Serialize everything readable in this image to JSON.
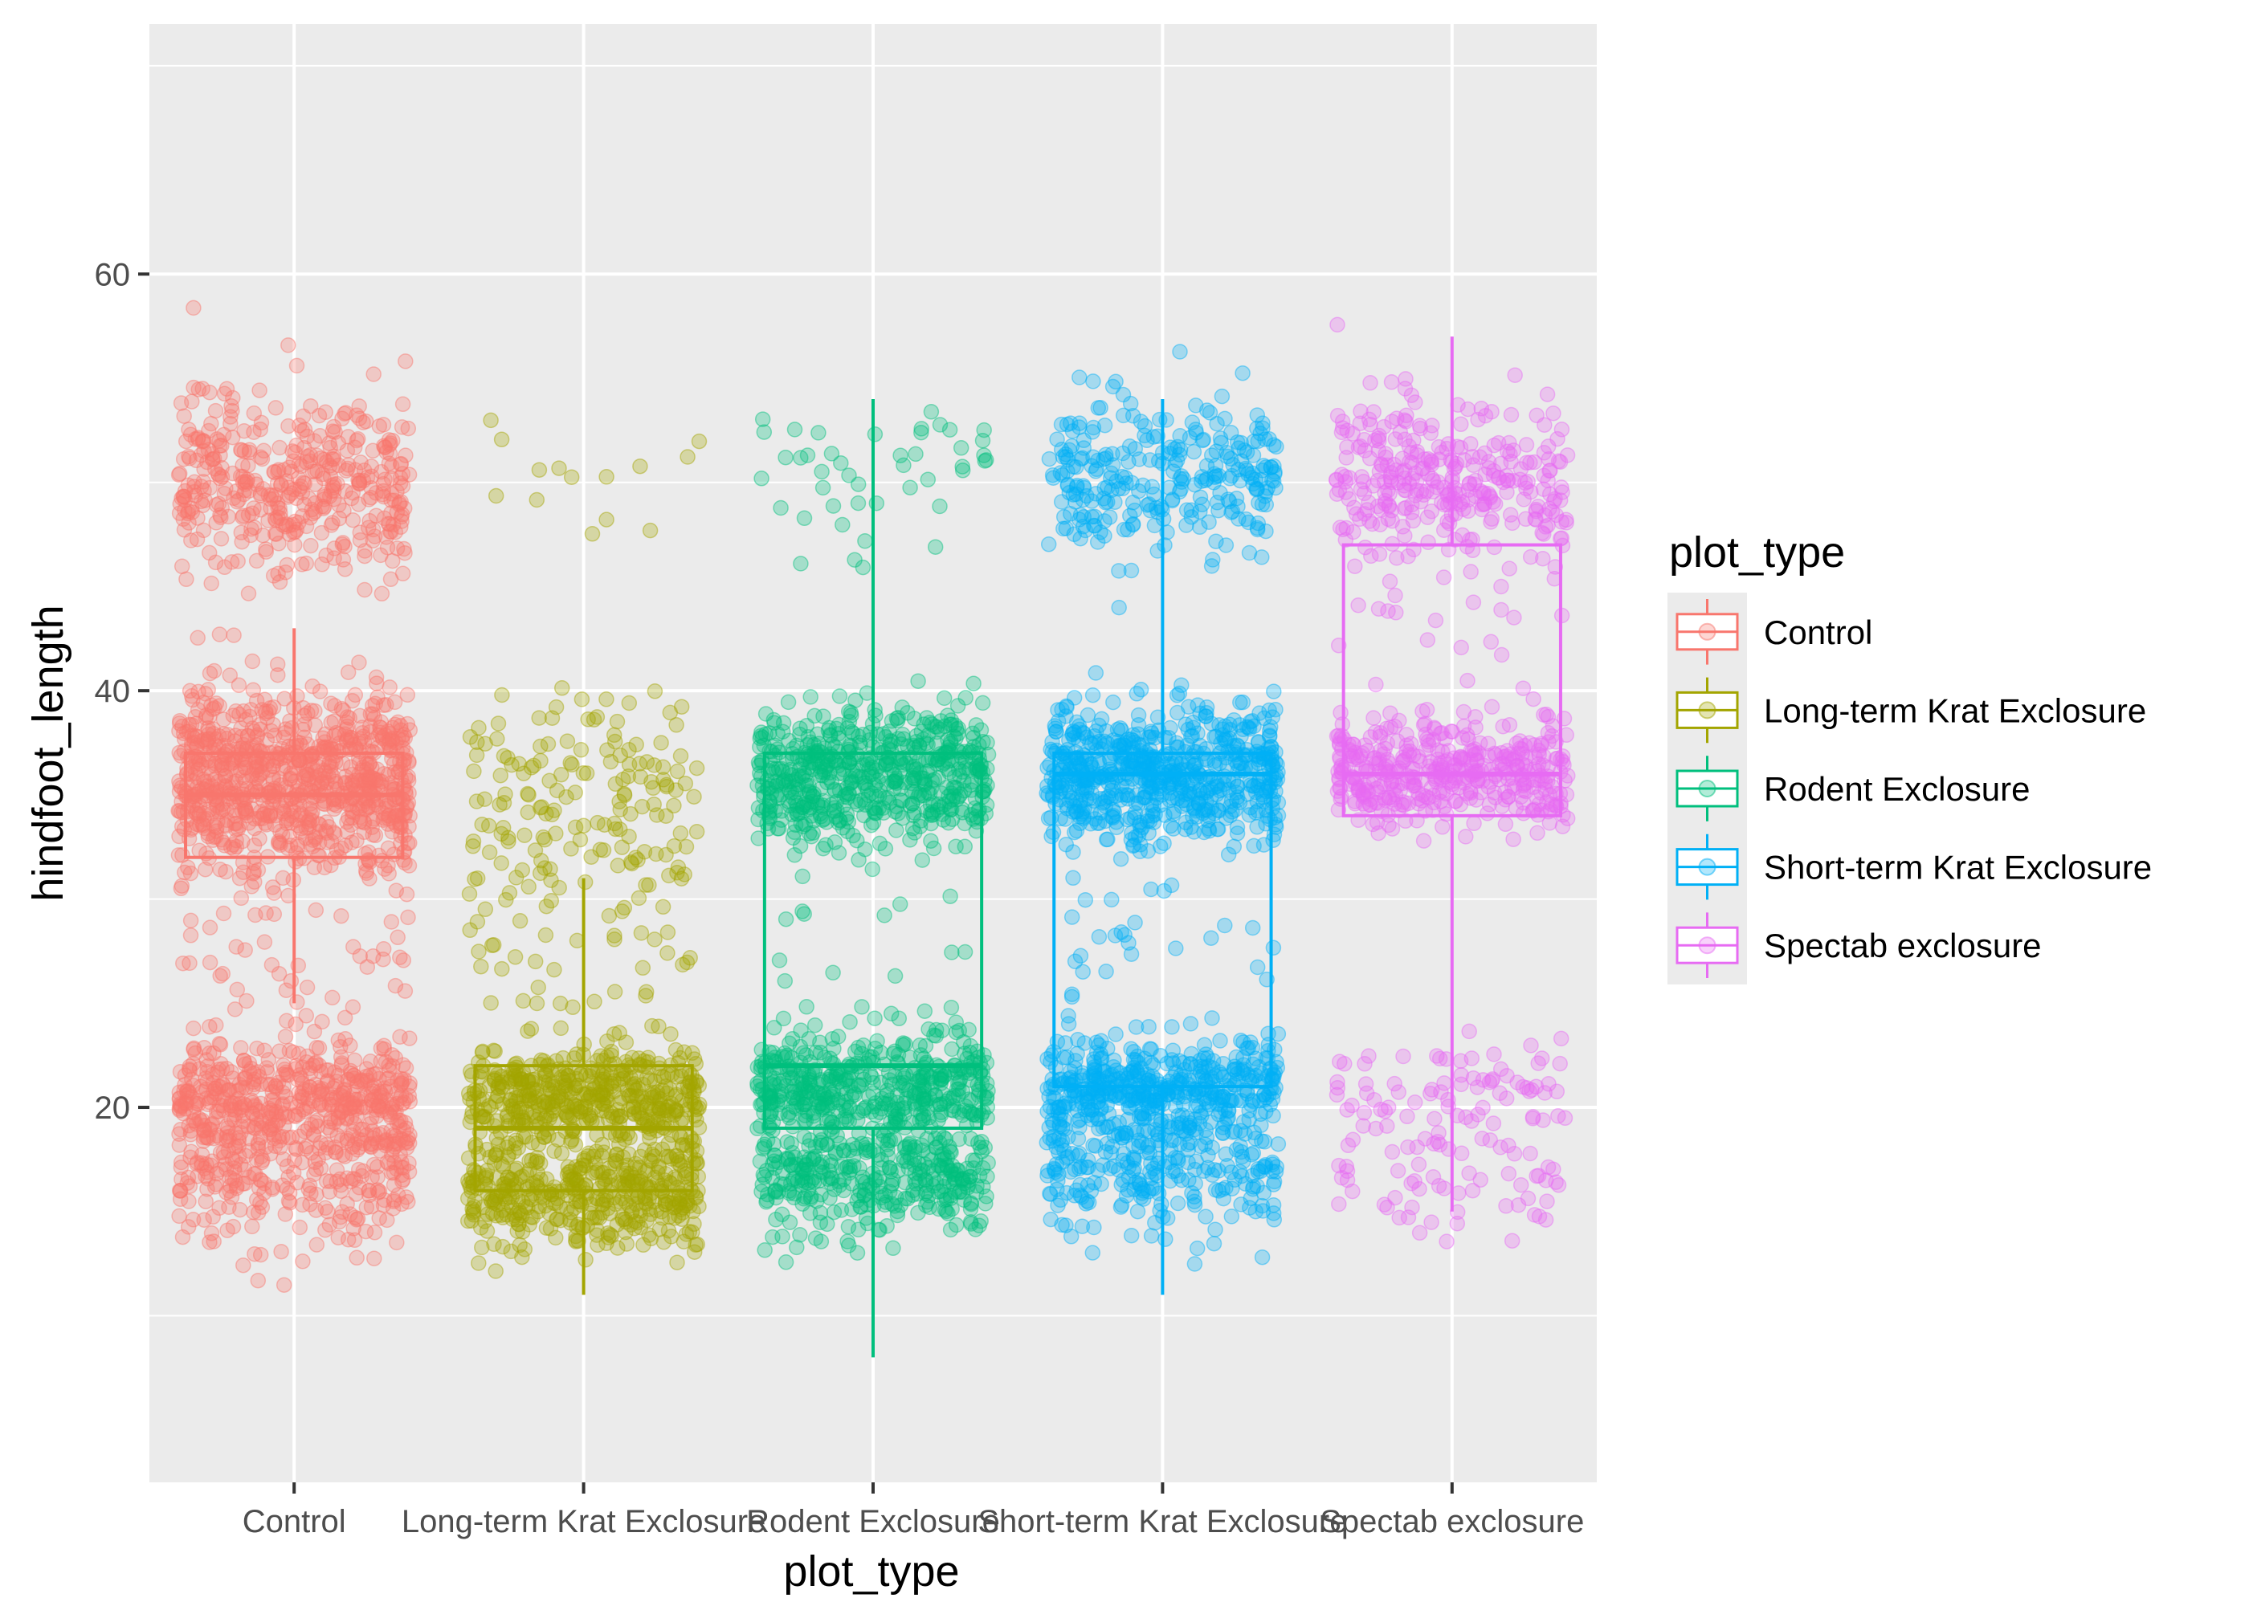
{
  "chart_data": {
    "type": "boxplot-jitter",
    "xlabel": "plot_type",
    "ylabel": "hindfoot_length",
    "ylim": [
      2,
      72
    ],
    "yticks": [
      20,
      40,
      60
    ],
    "grid": true,
    "legend": {
      "title": "plot_type",
      "placement": "right"
    },
    "categories": [
      "Control",
      "Long-term Krat Exclosure",
      "Rodent Exclosure",
      "Short-term Krat Exclosure",
      "Spectab exclosure"
    ],
    "colors": [
      "#F8766D",
      "#A3A500",
      "#00BF7D",
      "#00B0F6",
      "#E76BF3"
    ],
    "boxes": [
      {
        "name": "Control",
        "whisker_low": 25,
        "q1": 32,
        "median": 35,
        "q3": 37,
        "whisker_high": 43
      },
      {
        "name": "Long-term Krat Exclosure",
        "whisker_low": 11,
        "q1": 16,
        "median": 19,
        "q3": 22,
        "whisker_high": 31
      },
      {
        "name": "Rodent Exclosure",
        "whisker_low": 8,
        "q1": 19,
        "median": 22,
        "q3": 37,
        "whisker_high": 54
      },
      {
        "name": "Short-term Krat Exclosure",
        "whisker_low": 11,
        "q1": 21,
        "median": 36,
        "q3": 37,
        "whisker_high": 54
      },
      {
        "name": "Spectab exclosure",
        "whisker_low": 15,
        "q1": 34,
        "median": 36,
        "q3": 47,
        "whisker_high": 57
      }
    ],
    "point_clusters": [
      [
        {
          "center": 50,
          "spread": 2.2,
          "n": 420
        },
        {
          "center": 35.5,
          "spread": 2.2,
          "n": 900
        },
        {
          "center": 20.5,
          "spread": 1.4,
          "n": 500
        },
        {
          "center": 16.5,
          "spread": 1.6,
          "n": 250
        },
        {
          "center": 28,
          "spread": 2.5,
          "n": 50
        }
      ],
      [
        {
          "center": 35,
          "spread": 2.5,
          "n": 150
        },
        {
          "center": 20.5,
          "spread": 1.2,
          "n": 450
        },
        {
          "center": 16,
          "spread": 1.3,
          "n": 450
        },
        {
          "center": 28,
          "spread": 3.5,
          "n": 60
        },
        {
          "center": 50,
          "spread": 2,
          "n": 14
        }
      ],
      [
        {
          "center": 36,
          "spread": 1.6,
          "n": 600
        },
        {
          "center": 21,
          "spread": 1.2,
          "n": 450
        },
        {
          "center": 16.5,
          "spread": 1.3,
          "n": 350
        },
        {
          "center": 50,
          "spread": 2,
          "n": 45
        },
        {
          "center": 27,
          "spread": 3,
          "n": 25
        }
      ],
      [
        {
          "center": 36,
          "spread": 1.6,
          "n": 650
        },
        {
          "center": 50,
          "spread": 2,
          "n": 280
        },
        {
          "center": 21,
          "spread": 1.2,
          "n": 450
        },
        {
          "center": 17,
          "spread": 1.5,
          "n": 250
        },
        {
          "center": 28,
          "spread": 3,
          "n": 35
        }
      ],
      [
        {
          "center": 36,
          "spread": 1.3,
          "n": 420
        },
        {
          "center": 50,
          "spread": 2,
          "n": 320
        },
        {
          "center": 20.5,
          "spread": 1.5,
          "n": 90
        },
        {
          "center": 16,
          "spread": 1.2,
          "n": 50
        },
        {
          "center": 43,
          "spread": 2.5,
          "n": 20
        }
      ]
    ]
  }
}
